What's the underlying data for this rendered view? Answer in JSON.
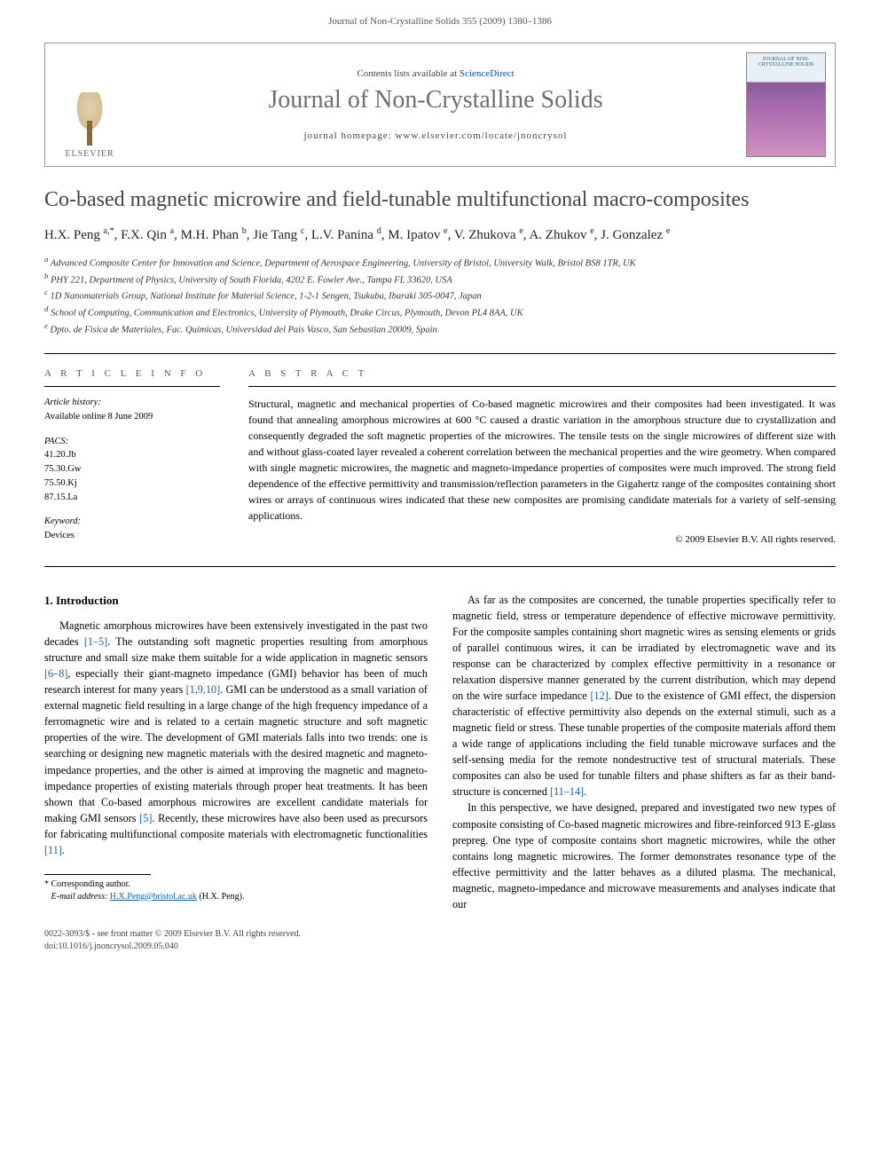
{
  "header": {
    "citation": "Journal of Non-Crystalline Solids 355 (2009) 1380–1386"
  },
  "banner": {
    "publisher": "ELSEVIER",
    "contents_prefix": "Contents lists available at ",
    "contents_link": "ScienceDirect",
    "journal_name": "Journal of Non-Crystalline Solids",
    "homepage_prefix": "journal homepage: ",
    "homepage_url": "www.elsevier.com/locate/jnoncrysol",
    "cover_label": "JOURNAL OF NON-CRYSTALLINE SOLIDS"
  },
  "article": {
    "title": "Co-based magnetic microwire and field-tunable multifunctional macro-composites",
    "authors_html": "H.X. Peng <sup>a,*</sup>, F.X. Qin <sup>a</sup>, M.H. Phan <sup>b</sup>, Jie Tang <sup>c</sup>, L.V. Panina <sup>d</sup>, M. Ipatov <sup>e</sup>, V. Zhukova <sup>e</sup>, A. Zhukov <sup>e</sup>, J. Gonzalez <sup>e</sup>",
    "affiliations": [
      "a Advanced Composite Center for Innovation and Science, Department of Aerospace Engineering, University of Bristol, University Walk, Bristol BS8 1TR, UK",
      "b PHY 221, Department of Physics, University of South Florida, 4202 E. Fowler Ave., Tampa FL 33620, USA",
      "c 1D Nanomaterials Group, National Institute for Material Science, 1-2-1 Sengen, Tsukuba, Ibaraki 305-0047, Japan",
      "d School of Computing, Communication and Electronics, University of Plymouth, Drake Circus, Plymouth, Devon PL4 8AA, UK",
      "e Dpto. de Fisica de Materiales, Fac. Químicas, Universidad del Pais Vasco, San Sebastian 20009, Spain"
    ]
  },
  "info": {
    "head": "A R T I C L E   I N F O",
    "history_label": "Article history:",
    "history_value": "Available online 8 June 2009",
    "pacs_label": "PACS:",
    "pacs_values": [
      "41.20.Jb",
      "75.30.Gw",
      "75.50.Kj",
      "87.15.La"
    ],
    "keyword_label": "Keyword:",
    "keyword_value": "Devices"
  },
  "abstract": {
    "head": "A B S T R A C T",
    "text": "Structural, magnetic and mechanical properties of Co-based magnetic microwires and their composites had been investigated. It was found that annealing amorphous microwires at 600 °C caused a drastic variation in the amorphous structure due to crystallization and consequently degraded the soft magnetic properties of the microwires. The tensile tests on the single microwires of different size with and without glass-coated layer revealed a coherent correlation between the mechanical properties and the wire geometry. When compared with single magnetic microwires, the magnetic and magneto-impedance properties of composites were much improved. The strong field dependence of the effective permittivity and transmission/reflection parameters in the Gigahertz range of the composites containing short wires or arrays of continuous wires indicated that these new composites are promising candidate materials for a variety of self-sensing applications.",
    "copyright": "© 2009 Elsevier B.V. All rights reserved."
  },
  "body": {
    "section_head": "1. Introduction",
    "col1": [
      "Magnetic amorphous microwires have been extensively investigated in the past two decades [1–5]. The outstanding soft magnetic properties resulting from amorphous structure and small size make them suitable for a wide application in magnetic sensors [6–8], especially their giant-magneto impedance (GMI) behavior has been of much research interest for many years [1,9,10]. GMI can be understood as a small variation of external magnetic field resulting in a large change of the high frequency impedance of a ferromagnetic wire and is related to a certain magnetic structure and soft magnetic properties of the wire. The development of GMI materials falls into two trends: one is searching or designing new magnetic materials with the desired magnetic and magneto-impedance properties, and the other is aimed at improving the magnetic and magneto-impedance properties of existing materials through proper heat treatments. It has been shown that Co-based amorphous microwires are excellent candidate materials for making GMI sensors [5]. Recently, these microwires have also been used as precursors for fabricating multifunctional composite materials with electromagnetic functionalities [11]."
    ],
    "col2": [
      "As far as the composites are concerned, the tunable properties specifically refer to magnetic field, stress or temperature dependence of effective microwave permittivity. For the composite samples containing short magnetic wires as sensing elements or grids of parallel continuous wires, it can be irradiated by electromagnetic wave and its response can be characterized by complex effective permittivity in a resonance or relaxation dispersive manner generated by the current distribution, which may depend on the wire surface impedance [12]. Due to the existence of GMI effect, the dispersion characteristic of effective permittivity also depends on the external stimuli, such as a magnetic field or stress. These tunable properties of the composite materials afford them a wide range of applications including the field tunable microwave surfaces and the self-sensing media for the remote nondestructive test of structural materials. These composites can also be used for tunable filters and phase shifters as far as their band-structure is concerned [11–14].",
      "In this perspective, we have designed, prepared and investigated two new types of composite consisting of Co-based magnetic microwires and fibre-reinforced 913 E-glass prepreg. One type of composite contains short magnetic microwires, while the other contains long magnetic microwires. The former demonstrates resonance type of the effective permittivity and the latter behaves as a diluted plasma. The mechanical, magnetic, magneto-impedance and microwave measurements and analyses indicate that our"
    ]
  },
  "footnote": {
    "corresponding": "* Corresponding author.",
    "email_label": "E-mail address:",
    "email": "H.X.Peng@bristol.ac.uk",
    "email_who": "(H.X. Peng)."
  },
  "footer": {
    "line1": "0022-3093/$ - see front matter © 2009 Elsevier B.V. All rights reserved.",
    "line2": "doi:10.1016/j.jnoncrysol.2009.05.040"
  },
  "colors": {
    "link": "#1060b0",
    "rule": "#000000",
    "muted": "#555555",
    "journal_title": "#6e6e6e"
  }
}
